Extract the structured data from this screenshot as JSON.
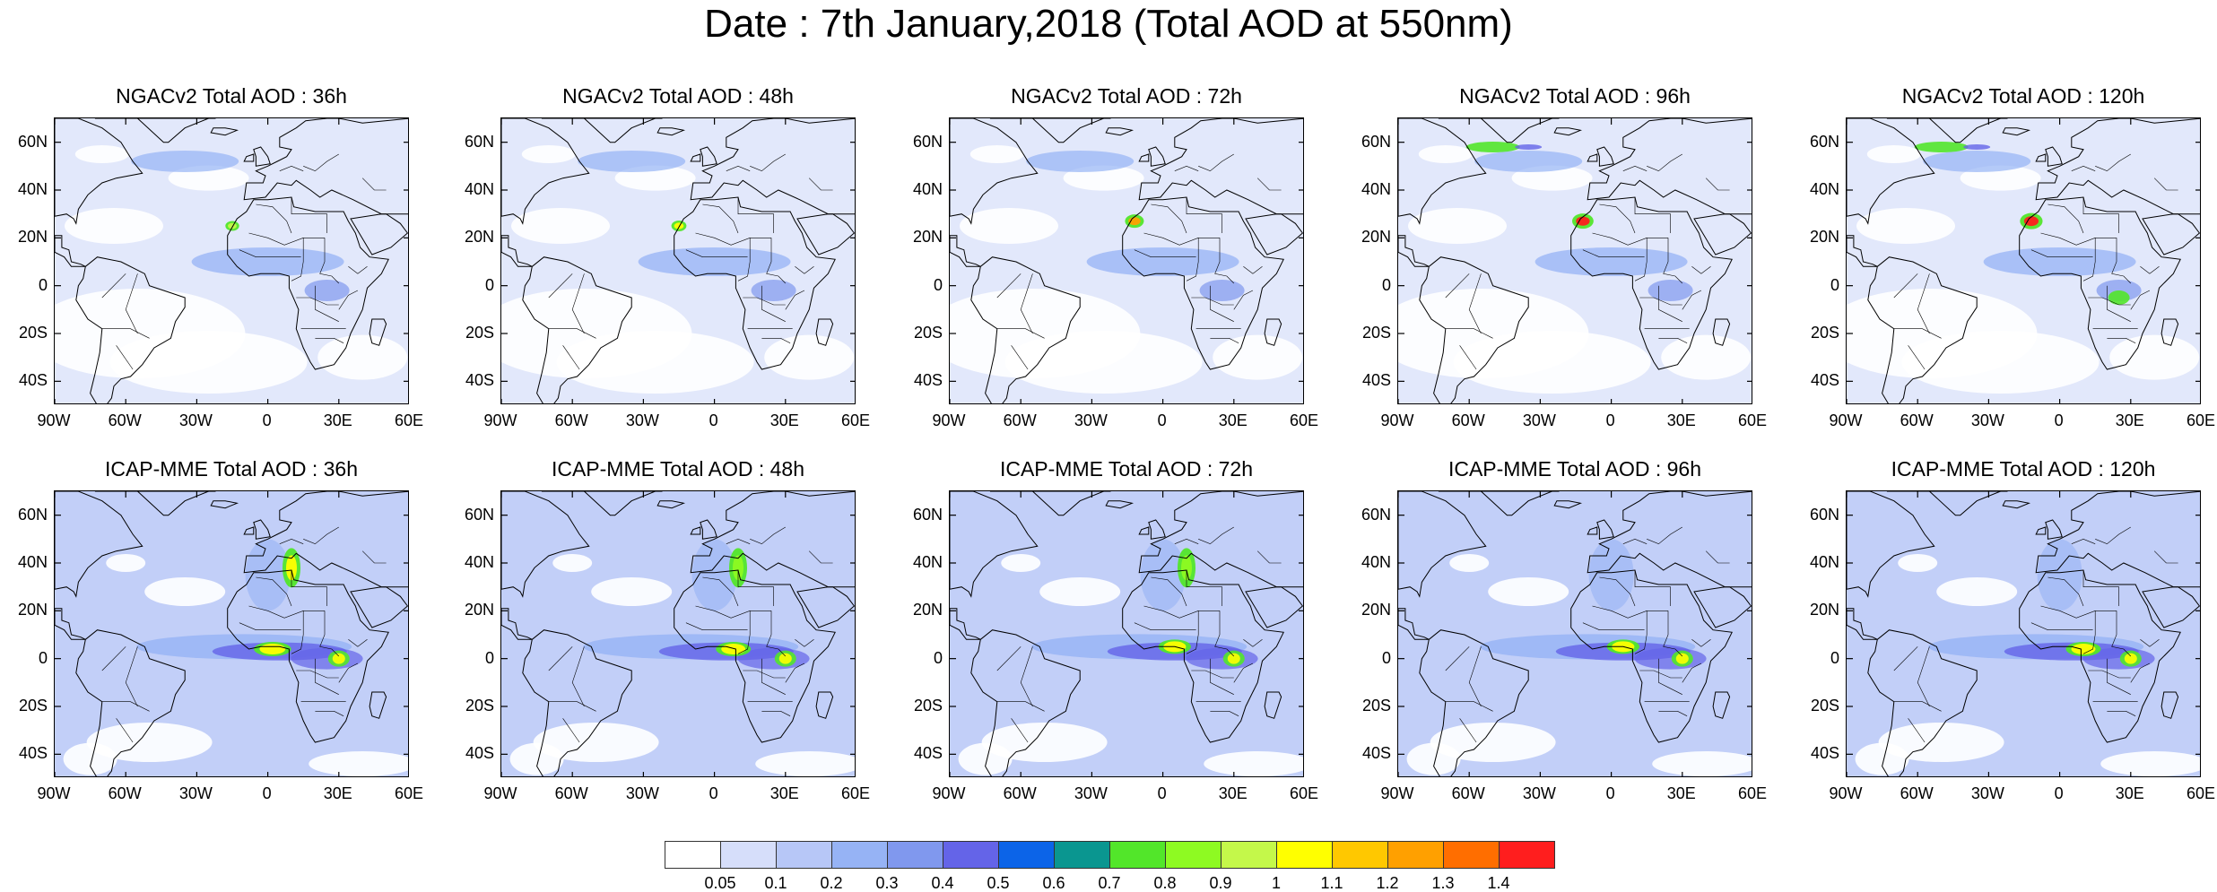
{
  "figure": {
    "title": "Date : 7th January,2018 (Total AOD at 550nm)"
  },
  "panels": [
    {
      "model": "NGACv2",
      "title": "NGACv2 Total AOD : 36h",
      "lead": "36h",
      "dust_strength": 0.55,
      "dust_core": "green",
      "aod_peak_value": 0.9
    },
    {
      "model": "NGACv2",
      "title": "NGACv2 Total AOD : 48h",
      "lead": "48h",
      "dust_strength": 0.6,
      "dust_core": "green",
      "aod_peak_value": 1.0
    },
    {
      "model": "NGACv2",
      "title": "NGACv2 Total AOD : 72h",
      "lead": "72h",
      "dust_strength": 0.75,
      "dust_core": "yellow",
      "aod_peak_value": 1.2
    },
    {
      "model": "NGACv2",
      "title": "NGACv2 Total AOD : 96h",
      "lead": "96h",
      "dust_strength": 0.85,
      "dust_core": "red",
      "aod_peak_value": 1.4
    },
    {
      "model": "NGACv2",
      "title": "NGACv2 Total AOD : 120h",
      "lead": "120h",
      "dust_strength": 0.9,
      "dust_core": "red",
      "aod_peak_value": 1.4
    },
    {
      "model": "ICAP-MME",
      "title": "ICAP-MME Total AOD : 36h",
      "lead": "36h",
      "dust_strength": 0.8,
      "dust_core": "yellow",
      "aod_peak_value": 1.1
    },
    {
      "model": "ICAP-MME",
      "title": "ICAP-MME Total AOD : 48h",
      "lead": "48h",
      "dust_strength": 0.75,
      "dust_core": "yellow",
      "aod_peak_value": 1.0
    },
    {
      "model": "ICAP-MME",
      "title": "ICAP-MME Total AOD : 72h",
      "lead": "72h",
      "dust_strength": 0.7,
      "dust_core": "green",
      "aod_peak_value": 1.0
    },
    {
      "model": "ICAP-MME",
      "title": "ICAP-MME Total AOD : 96h",
      "lead": "96h",
      "dust_strength": 0.7,
      "dust_core": "yellow",
      "aod_peak_value": 1.0
    },
    {
      "model": "ICAP-MME",
      "title": "ICAP-MME Total AOD : 120h",
      "lead": "120h",
      "dust_strength": 0.75,
      "dust_core": "yellow",
      "aod_peak_value": 1.1
    }
  ],
  "map_extent": {
    "lon_min": -90,
    "lon_max": 60,
    "lat_min": -50,
    "lat_max": 70
  },
  "lat_ticks": [
    "60N",
    "40N",
    "20N",
    "0",
    "20S",
    "40S"
  ],
  "lon_ticks": [
    "90W",
    "60W",
    "30W",
    "0",
    "30E",
    "60E"
  ],
  "colorbar": {
    "labels": [
      "0.05",
      "0.1",
      "0.2",
      "0.3",
      "0.4",
      "0.5",
      "0.6",
      "0.7",
      "0.8",
      "0.9",
      "1",
      "1.1",
      "1.2",
      "1.3",
      "1.4"
    ],
    "colors": [
      "#ffffff",
      "#d6defa",
      "#b7c7f7",
      "#96b3f5",
      "#8098ee",
      "#6464e8",
      "#0c64e8",
      "#0a9690",
      "#52e62a",
      "#8efa22",
      "#c4f84a",
      "#ffff00",
      "#ffc800",
      "#ffa000",
      "#ff6e00",
      "#ff1e1e"
    ]
  }
}
